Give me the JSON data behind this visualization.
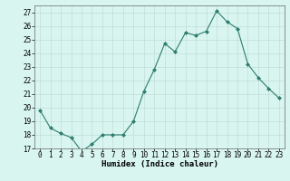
{
  "x": [
    0,
    1,
    2,
    3,
    4,
    5,
    6,
    7,
    8,
    9,
    10,
    11,
    12,
    13,
    14,
    15,
    16,
    17,
    18,
    19,
    20,
    21,
    22,
    23
  ],
  "y": [
    19.8,
    18.5,
    18.1,
    17.8,
    16.8,
    17.3,
    18.0,
    18.0,
    18.0,
    19.0,
    21.2,
    22.8,
    24.7,
    24.1,
    25.5,
    25.3,
    25.6,
    27.1,
    26.3,
    25.8,
    23.2,
    22.2,
    21.4,
    20.7
  ],
  "line_color": "#2e7d6e",
  "marker_color": "#2e7d6e",
  "bg_color": "#d8f5f0",
  "grid_color": "#c0ddd8",
  "xlabel": "Humidex (Indice chaleur)",
  "ylabel": "",
  "xlim": [
    -0.5,
    23.5
  ],
  "ylim": [
    17,
    27.5
  ],
  "yticks": [
    17,
    18,
    19,
    20,
    21,
    22,
    23,
    24,
    25,
    26,
    27
  ],
  "xticks": [
    0,
    1,
    2,
    3,
    4,
    5,
    6,
    7,
    8,
    9,
    10,
    11,
    12,
    13,
    14,
    15,
    16,
    17,
    18,
    19,
    20,
    21,
    22,
    23
  ],
  "tick_fontsize": 5.5,
  "xlabel_fontsize": 6.5,
  "linewidth": 0.8,
  "markersize": 2.0
}
